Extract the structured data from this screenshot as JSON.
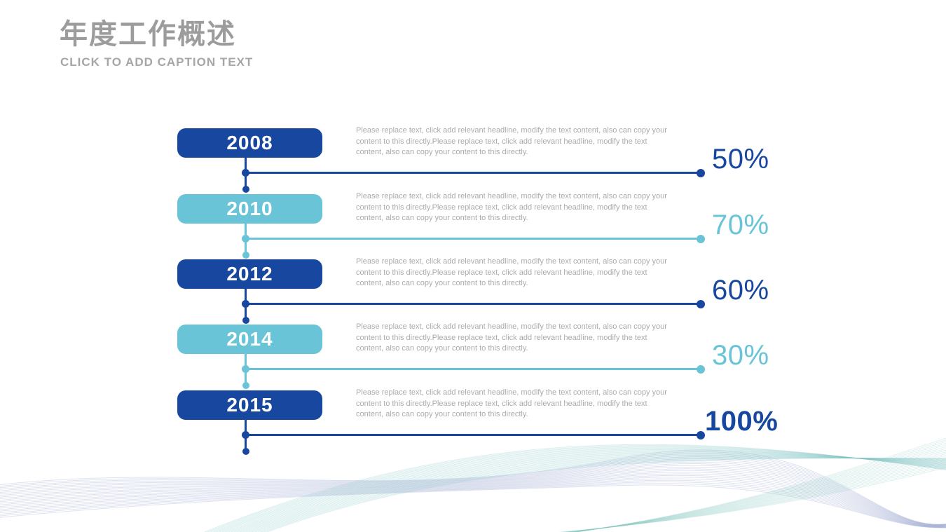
{
  "header": {
    "title": "年度工作概述",
    "subtitle": "CLICK TO ADD CAPTION TEXT"
  },
  "colors": {
    "dark_blue": "#17479E",
    "light_blue": "#68C4D6",
    "title_gray": "#9C9C9C",
    "subtitle_gray": "#A6A6A6",
    "text_gray": "#ABABAB"
  },
  "timeline": {
    "items": [
      {
        "year": "2008",
        "percent": "50%",
        "theme": "dark",
        "description": "Please replace text, click add relevant headline, modify the text content, also can copy your content to this directly.Please replace text, click add relevant headline, modify the text content, also can copy your content to this directly."
      },
      {
        "year": "2010",
        "percent": "70%",
        "theme": "light",
        "description": "Please replace text, click add relevant headline, modify the text content, also can copy your content to this directly.Please replace text, click add relevant headline, modify the text content, also can copy your content to this directly."
      },
      {
        "year": "2012",
        "percent": "60%",
        "theme": "dark",
        "description": "Please replace text, click add relevant headline, modify the text content, also can copy your content to this directly.Please replace text, click add relevant headline, modify the text content, also can copy your content to this directly."
      },
      {
        "year": "2014",
        "percent": "30%",
        "theme": "light",
        "description": "Please replace text, click add relevant headline, modify the text content, also can copy your content to this directly.Please replace text, click add relevant headline, modify the text content, also can copy your content to this directly."
      },
      {
        "year": "2015",
        "percent": "100%",
        "theme": "dark",
        "emphasis": true,
        "description": "Please replace text, click add relevant headline, modify the text content, also can copy your content to this directly.Please replace text, click add relevant headline, modify the text content, also can copy your content to this directly."
      }
    ]
  }
}
